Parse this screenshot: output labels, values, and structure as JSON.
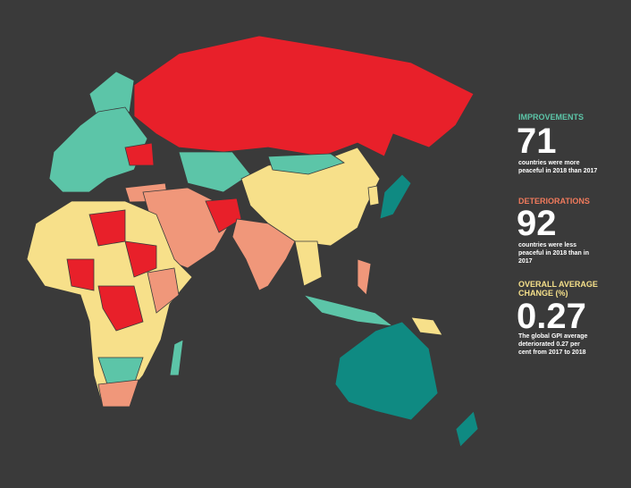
{
  "improvements": {
    "label": "IMPROVEMENTS",
    "number": 71,
    "description": "countries were more peaceful in 2018 than 2017"
  },
  "deteriorations": {
    "label": "DETERIORATIONS",
    "number": 92,
    "description": "countries were less peaceful in 2018 than in 2017"
  },
  "average_change": {
    "label": "OVERALL AVERAGE CHANGE (%)",
    "number": 0.27,
    "description": "The global GPI average deteriorated 0.27 per cent from 2017 to 2018"
  }
}
